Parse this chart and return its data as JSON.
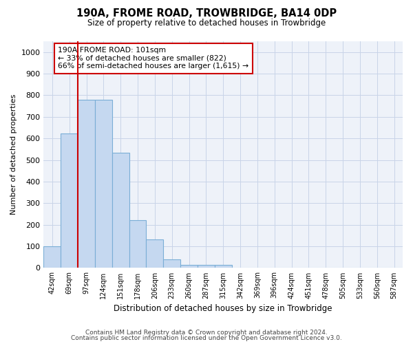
{
  "title": "190A, FROME ROAD, TROWBRIDGE, BA14 0DP",
  "subtitle": "Size of property relative to detached houses in Trowbridge",
  "xlabel": "Distribution of detached houses by size in Trowbridge",
  "ylabel": "Number of detached properties",
  "bar_color": "#c5d8f0",
  "bar_edge_color": "#7aaed6",
  "vline_color": "#cc0000",
  "vline_index": 2,
  "categories": [
    "42sqm",
    "69sqm",
    "97sqm",
    "124sqm",
    "151sqm",
    "178sqm",
    "206sqm",
    "233sqm",
    "260sqm",
    "287sqm",
    "315sqm",
    "342sqm",
    "369sqm",
    "396sqm",
    "424sqm",
    "451sqm",
    "478sqm",
    "505sqm",
    "533sqm",
    "560sqm",
    "587sqm"
  ],
  "values": [
    100,
    622,
    780,
    780,
    535,
    222,
    132,
    40,
    15,
    15,
    15,
    0,
    0,
    0,
    0,
    0,
    0,
    0,
    0,
    0,
    0
  ],
  "ylim": [
    0,
    1050
  ],
  "yticks": [
    0,
    100,
    200,
    300,
    400,
    500,
    600,
    700,
    800,
    900,
    1000
  ],
  "annotation_title": "190A FROME ROAD: 101sqm",
  "annotation_line1": "← 33% of detached houses are smaller (822)",
  "annotation_line2": "66% of semi-detached houses are larger (1,615) →",
  "annotation_box_color": "#ffffff",
  "annotation_box_edge": "#cc0000",
  "footer_line1": "Contains HM Land Registry data © Crown copyright and database right 2024.",
  "footer_line2": "Contains public sector information licensed under the Open Government Licence v3.0.",
  "plot_background": "#eef2f9",
  "grid_color": "#c8d4e8"
}
